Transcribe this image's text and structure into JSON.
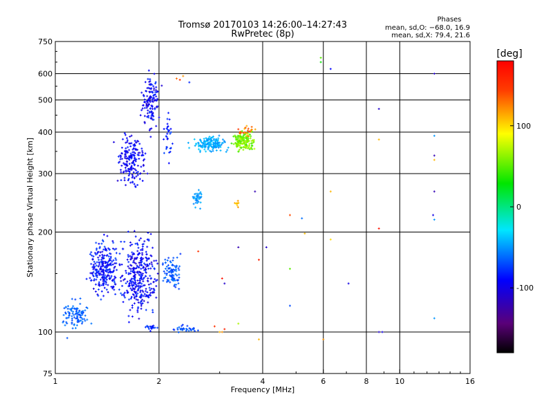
{
  "chart_data": {
    "type": "scatter",
    "title": "Tromsø 20170103 14:26:00–14:27:43",
    "subtitle": "RwPretec (8p)",
    "xlabel": "Frequency [MHz]",
    "ylabel": "Stationary phase Virtual Height [km]",
    "x_scale": "log",
    "y_scale": "log",
    "xlim": [
      1,
      16
    ],
    "ylim": [
      75,
      750
    ],
    "x_ticks": [
      1,
      2,
      4,
      6,
      8,
      10,
      16
    ],
    "y_ticks": [
      75,
      100,
      200,
      300,
      400,
      500,
      600,
      750
    ],
    "grid": true,
    "stats_box": {
      "title": "Phases",
      "line1": "mean, sd,O: −68.0, 16.9",
      "line2": "mean, sd,X:  79.4, 21.6"
    },
    "colorbar": {
      "label": "[deg]",
      "range": [
        -180,
        180
      ],
      "ticks": [
        100,
        0,
        -100
      ],
      "colormap": "rainbow (black → violet → blue → cyan → green → yellow → red)"
    },
    "clusters": [
      {
        "x": [
          1.0,
          1.3
        ],
        "y": [
          95,
          130
        ],
        "phase": [
          -75,
          -55
        ],
        "n": 100
      },
      {
        "x": [
          1.2,
          1.6
        ],
        "y": [
          120,
          200
        ],
        "phase": [
          -105,
          -70
        ],
        "n": 260
      },
      {
        "x": [
          1.5,
          2.05
        ],
        "y": [
          100,
          220
        ],
        "phase": [
          -110,
          -75
        ],
        "n": 340
      },
      {
        "x": [
          2.0,
          2.35
        ],
        "y": [
          130,
          175
        ],
        "phase": [
          -80,
          -55
        ],
        "n": 90
      },
      {
        "x": [
          1.45,
          1.9
        ],
        "y": [
          260,
          420
        ],
        "phase": [
          -110,
          -80
        ],
        "n": 180
      },
      {
        "x": [
          1.75,
          2.05
        ],
        "y": [
          380,
          630
        ],
        "phase": [
          -110,
          -75
        ],
        "n": 130
      },
      {
        "x": [
          2.05,
          2.2
        ],
        "y": [
          300,
          500
        ],
        "phase": [
          -95,
          -70
        ],
        "n": 30
      },
      {
        "x": [
          2.4,
          3.3
        ],
        "y": [
          345,
          395
        ],
        "phase": [
          -55,
          -35
        ],
        "n": 160
      },
      {
        "x": [
          3.2,
          3.9
        ],
        "y": [
          345,
          410
        ],
        "phase": [
          40,
          75
        ],
        "n": 160
      },
      {
        "x": [
          3.3,
          3.9
        ],
        "y": [
          380,
          430
        ],
        "phase": [
          100,
          150
        ],
        "n": 25
      },
      {
        "x": [
          2.45,
          2.7
        ],
        "y": [
          230,
          275
        ],
        "phase": [
          -55,
          -40
        ],
        "n": 40
      },
      {
        "x": [
          1.8,
          2.0
        ],
        "y": [
          100,
          106
        ],
        "phase": [
          -90,
          -70
        ],
        "n": 20
      },
      {
        "x": [
          2.1,
          2.8
        ],
        "y": [
          98,
          106
        ],
        "phase": [
          -80,
          -60
        ],
        "n": 30
      },
      {
        "x": [
          3.3,
          3.45
        ],
        "y": [
          235,
          250
        ],
        "phase": [
          90,
          120
        ],
        "n": 10
      }
    ],
    "points": [
      {
        "x": 5.9,
        "y": 670,
        "phase": 50
      },
      {
        "x": 5.9,
        "y": 650,
        "phase": 30
      },
      {
        "x": 6.3,
        "y": 620,
        "phase": -90
      },
      {
        "x": 8.7,
        "y": 470,
        "phase": -110
      },
      {
        "x": 8.7,
        "y": 380,
        "phase": 110
      },
      {
        "x": 12.6,
        "y": 390,
        "phase": -50
      },
      {
        "x": 12.6,
        "y": 340,
        "phase": -120
      },
      {
        "x": 12.6,
        "y": 330,
        "phase": 110
      },
      {
        "x": 12.6,
        "y": 265,
        "phase": -120
      },
      {
        "x": 12.5,
        "y": 225,
        "phase": -100
      },
      {
        "x": 12.6,
        "y": 218,
        "phase": -50
      },
      {
        "x": 12.6,
        "y": 110,
        "phase": -50
      },
      {
        "x": 12.6,
        "y": 600,
        "phase": -110
      },
      {
        "x": 8.7,
        "y": 205,
        "phase": 170
      },
      {
        "x": 8.7,
        "y": 100,
        "phase": -110
      },
      {
        "x": 8.9,
        "y": 100,
        "phase": -100
      },
      {
        "x": 7.1,
        "y": 140,
        "phase": -100
      },
      {
        "x": 6.3,
        "y": 265,
        "phase": 110
      },
      {
        "x": 6.3,
        "y": 190,
        "phase": 100
      },
      {
        "x": 6.0,
        "y": 95,
        "phase": 120
      },
      {
        "x": 5.3,
        "y": 198,
        "phase": 110
      },
      {
        "x": 5.2,
        "y": 220,
        "phase": -60
      },
      {
        "x": 4.8,
        "y": 225,
        "phase": 140
      },
      {
        "x": 4.8,
        "y": 155,
        "phase": 50
      },
      {
        "x": 4.8,
        "y": 120,
        "phase": -70
      },
      {
        "x": 4.1,
        "y": 180,
        "phase": -110
      },
      {
        "x": 3.8,
        "y": 265,
        "phase": -120
      },
      {
        "x": 3.9,
        "y": 165,
        "phase": 160
      },
      {
        "x": 3.9,
        "y": 95,
        "phase": 110
      },
      {
        "x": 3.4,
        "y": 180,
        "phase": -120
      },
      {
        "x": 3.05,
        "y": 145,
        "phase": 170
      },
      {
        "x": 3.1,
        "y": 140,
        "phase": -110
      },
      {
        "x": 3.0,
        "y": 100,
        "phase": 110
      },
      {
        "x": 3.05,
        "y": 100,
        "phase": 120
      },
      {
        "x": 3.1,
        "y": 102,
        "phase": 160
      },
      {
        "x": 2.9,
        "y": 104,
        "phase": 150
      },
      {
        "x": 3.4,
        "y": 106,
        "phase": 70
      },
      {
        "x": 2.6,
        "y": 175,
        "phase": 150
      },
      {
        "x": 2.3,
        "y": 575,
        "phase": 150
      },
      {
        "x": 2.35,
        "y": 590,
        "phase": 120
      },
      {
        "x": 2.25,
        "y": 580,
        "phase": 130
      },
      {
        "x": 2.45,
        "y": 565,
        "phase": -80
      }
    ]
  }
}
